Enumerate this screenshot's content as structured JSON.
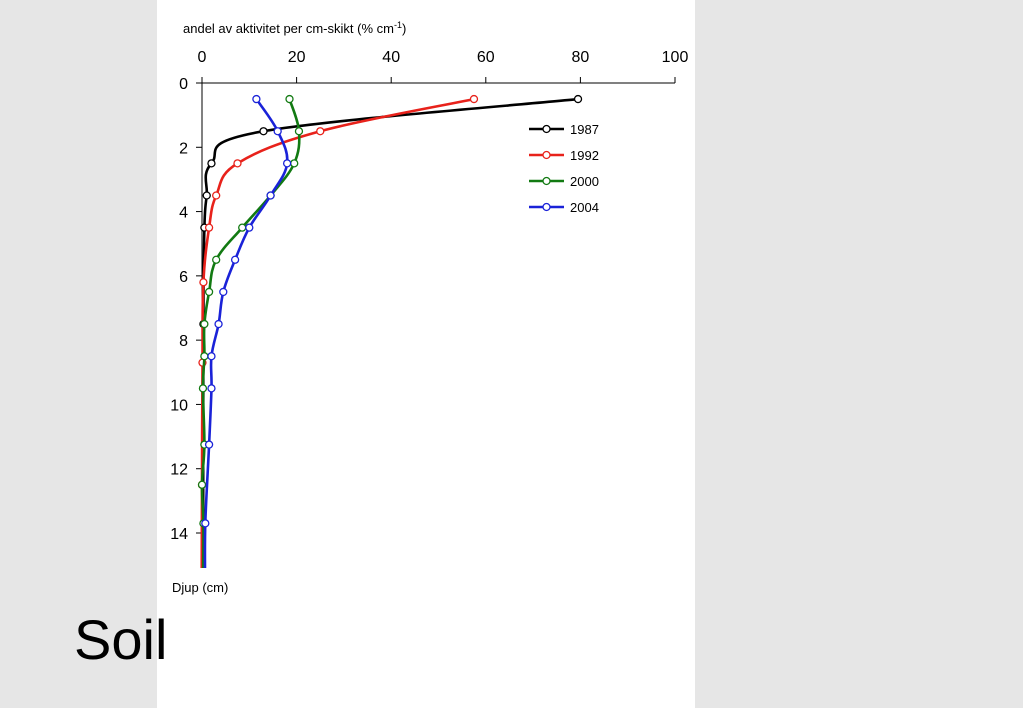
{
  "slide": {
    "title": "Soil"
  },
  "chart_data": {
    "type": "line",
    "title": "",
    "xlabel": "andel av aktivitet per cm-skikt (% cm",
    "xlabel_sup": "-1",
    "xlabel_end": ")",
    "ylabel": "Djup (cm)",
    "xlim": [
      0,
      100
    ],
    "ylim": [
      0,
      15
    ],
    "y_inverted": true,
    "x_axis_position": "top",
    "x_ticks": [
      "0",
      "20",
      "40",
      "60",
      "80",
      "100"
    ],
    "y_ticks": [
      "0",
      "2",
      "4",
      "6",
      "8",
      "10",
      "12",
      "14"
    ],
    "grid": false,
    "legend_position": "right",
    "series": [
      {
        "name": "1987",
        "color": "#000000",
        "points": [
          [
            79.5,
            0.5
          ],
          [
            13,
            1.5
          ],
          [
            2,
            2.5
          ],
          [
            1,
            3.5
          ],
          [
            0.5,
            4.5
          ],
          [
            0.3,
            7.5
          ]
        ]
      },
      {
        "name": "1992",
        "color": "#e8221b",
        "points": [
          [
            57.5,
            0.5
          ],
          [
            25,
            1.5
          ],
          [
            7.5,
            2.5
          ],
          [
            3,
            3.5
          ],
          [
            1.5,
            4.5
          ],
          [
            0.3,
            6.2
          ],
          [
            0.1,
            8.7
          ],
          [
            0,
            12.5
          ]
        ]
      },
      {
        "name": "2000",
        "color": "#127a12",
        "points": [
          [
            18.5,
            0.5
          ],
          [
            20.5,
            1.5
          ],
          [
            19.5,
            2.5
          ],
          [
            14.5,
            3.5
          ],
          [
            8.5,
            4.5
          ],
          [
            3,
            5.5
          ],
          [
            1.5,
            6.5
          ],
          [
            0.5,
            7.5
          ],
          [
            0.5,
            8.5
          ],
          [
            0.2,
            9.5
          ],
          [
            0.5,
            11.25
          ],
          [
            0,
            12.5
          ],
          [
            0.3,
            13.7
          ]
        ]
      },
      {
        "name": "2004",
        "color": "#1a22d8",
        "points": [
          [
            11.5,
            0.5
          ],
          [
            16,
            1.5
          ],
          [
            18,
            2.5
          ],
          [
            14.5,
            3.5
          ],
          [
            10,
            4.5
          ],
          [
            7,
            5.5
          ],
          [
            4.5,
            6.5
          ],
          [
            3.5,
            7.5
          ],
          [
            2,
            8.5
          ],
          [
            2,
            9.5
          ],
          [
            1.5,
            11.25
          ],
          [
            0.7,
            13.7
          ]
        ]
      }
    ]
  }
}
